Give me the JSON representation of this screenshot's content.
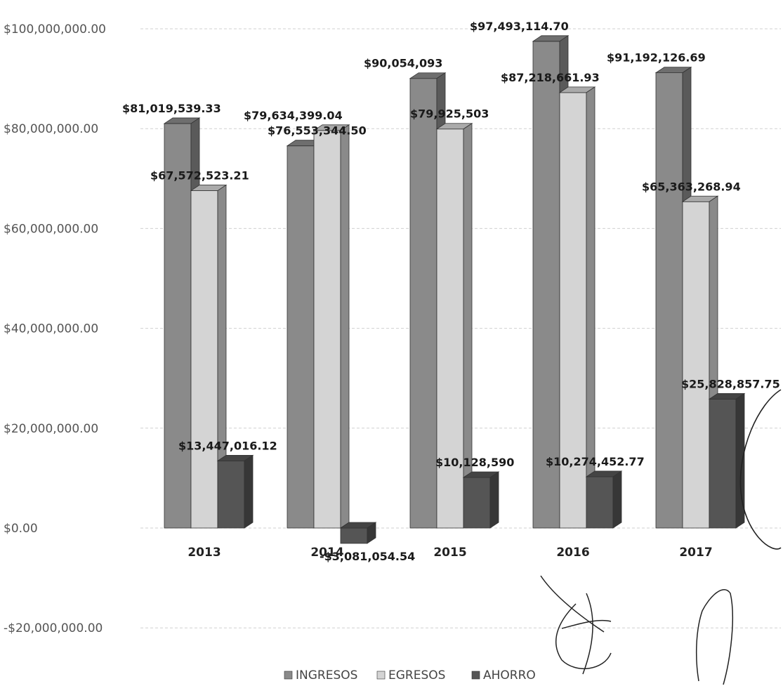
{
  "chart_data": {
    "type": "bar",
    "categories": [
      "2013",
      "2014",
      "2015",
      "2016",
      "2017"
    ],
    "series": [
      {
        "name": "INGRESOS",
        "color": "#8a8a8a",
        "values": [
          81019539.33,
          76553344.5,
          90054093,
          97493114.7,
          91192126.69
        ],
        "labels": [
          "$81,019,539.33",
          "$76,553,344.50",
          "$90,054,093",
          "$97,493,114.70",
          "$91,192,126.69"
        ]
      },
      {
        "name": "EGRESOS",
        "color": "#d4d4d4",
        "values": [
          67572523.21,
          79634399.04,
          79925503,
          87218661.93,
          65363268.94
        ],
        "labels": [
          "$67,572,523.21",
          "$79,634,399.04",
          "$79,925,503",
          "$87,218,661.93",
          "$65,363,268.94"
        ]
      },
      {
        "name": "AHORRO",
        "color": "#555555",
        "values": [
          13447016.12,
          -3081054.54,
          10128590,
          10274452.77,
          25828857.75
        ],
        "labels": [
          "$13,447,016.12",
          "-$3,081,054.54",
          "$10,128,590",
          "$10,274,452.77",
          "$25,828,857.75"
        ]
      }
    ],
    "yticks": [
      100000000,
      80000000,
      60000000,
      40000000,
      20000000,
      0,
      -20000000
    ],
    "ytick_labels": [
      "$100,000,000.00",
      "$80,000,000.00",
      "$60,000,000.00",
      "$40,000,000.00",
      "$20,000,000.00",
      "$0.00",
      "-$20,000,000.00"
    ],
    "ylim": [
      -20000000,
      100000000
    ],
    "title": "",
    "xlabel": "",
    "ylabel": "",
    "grid": true,
    "legend_position": "bottom",
    "style": "3d-clustered-column"
  }
}
